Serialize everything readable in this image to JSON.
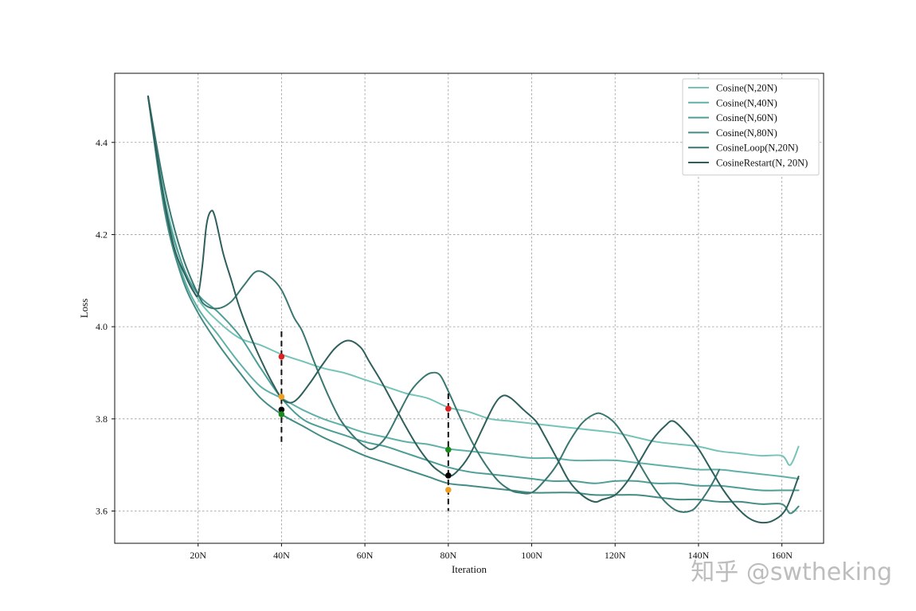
{
  "chart_data": {
    "type": "line",
    "xlabel": "Iteration",
    "ylabel": "Loss",
    "xlim": [
      0,
      170
    ],
    "ylim": [
      3.53,
      4.55
    ],
    "xticks": [
      20,
      40,
      60,
      80,
      100,
      120,
      140,
      160
    ],
    "xtick_labels": [
      "20N",
      "40N",
      "60N",
      "80N",
      "100N",
      "120N",
      "140N",
      "160N"
    ],
    "yticks": [
      3.6,
      3.8,
      4.0,
      4.2,
      4.4
    ],
    "ytick_labels": [
      "3.6",
      "3.8",
      "4.0",
      "4.2",
      "4.4"
    ],
    "grid": true,
    "legend_position": "top-right",
    "series": [
      {
        "name": "Cosine(N,20N)",
        "color": "#76c3b8",
        "points": [
          [
            8,
            4.5
          ],
          [
            12,
            4.28
          ],
          [
            16,
            4.14
          ],
          [
            20,
            4.06
          ],
          [
            25,
            4.01
          ],
          [
            30,
            3.975
          ],
          [
            35,
            3.96
          ],
          [
            40,
            3.94
          ],
          [
            45,
            3.925
          ],
          [
            50,
            3.91
          ],
          [
            55,
            3.9
          ],
          [
            60,
            3.885
          ],
          [
            65,
            3.87
          ],
          [
            70,
            3.855
          ],
          [
            75,
            3.845
          ],
          [
            80,
            3.825
          ],
          [
            85,
            3.815
          ],
          [
            90,
            3.8
          ],
          [
            95,
            3.795
          ],
          [
            100,
            3.79
          ],
          [
            105,
            3.785
          ],
          [
            110,
            3.78
          ],
          [
            115,
            3.775
          ],
          [
            120,
            3.77
          ],
          [
            125,
            3.76
          ],
          [
            130,
            3.75
          ],
          [
            135,
            3.745
          ],
          [
            140,
            3.74
          ],
          [
            145,
            3.73
          ],
          [
            150,
            3.725
          ],
          [
            155,
            3.72
          ],
          [
            160,
            3.72
          ],
          [
            162,
            3.7
          ],
          [
            164,
            3.74
          ]
        ]
      },
      {
        "name": "Cosine(N,40N)",
        "color": "#5fb1a8",
        "points": [
          [
            8,
            4.5
          ],
          [
            12,
            4.26
          ],
          [
            16,
            4.12
          ],
          [
            20,
            4.04
          ],
          [
            25,
            3.98
          ],
          [
            30,
            3.92
          ],
          [
            35,
            3.87
          ],
          [
            40,
            3.845
          ],
          [
            45,
            3.82
          ],
          [
            50,
            3.8
          ],
          [
            55,
            3.785
          ],
          [
            60,
            3.77
          ],
          [
            65,
            3.76
          ],
          [
            70,
            3.75
          ],
          [
            75,
            3.745
          ],
          [
            80,
            3.735
          ],
          [
            85,
            3.73
          ],
          [
            90,
            3.725
          ],
          [
            95,
            3.72
          ],
          [
            100,
            3.715
          ],
          [
            105,
            3.715
          ],
          [
            110,
            3.71
          ],
          [
            115,
            3.71
          ],
          [
            120,
            3.71
          ],
          [
            125,
            3.705
          ],
          [
            130,
            3.7
          ],
          [
            135,
            3.695
          ],
          [
            140,
            3.69
          ],
          [
            145,
            3.69
          ],
          [
            150,
            3.685
          ],
          [
            155,
            3.68
          ],
          [
            160,
            3.675
          ],
          [
            164,
            3.67
          ]
        ]
      },
      {
        "name": "Cosine(N,60N)",
        "color": "#4d9e96",
        "points": [
          [
            8,
            4.5
          ],
          [
            12,
            4.27
          ],
          [
            16,
            4.14
          ],
          [
            20,
            4.07
          ],
          [
            25,
            4.03
          ],
          [
            30,
            3.98
          ],
          [
            35,
            3.91
          ],
          [
            40,
            3.845
          ],
          [
            45,
            3.8
          ],
          [
            50,
            3.78
          ],
          [
            55,
            3.765
          ],
          [
            60,
            3.75
          ],
          [
            65,
            3.74
          ],
          [
            70,
            3.725
          ],
          [
            75,
            3.71
          ],
          [
            80,
            3.695
          ],
          [
            85,
            3.685
          ],
          [
            90,
            3.68
          ],
          [
            95,
            3.675
          ],
          [
            100,
            3.67
          ],
          [
            105,
            3.665
          ],
          [
            110,
            3.665
          ],
          [
            115,
            3.66
          ],
          [
            120,
            3.665
          ],
          [
            125,
            3.665
          ],
          [
            130,
            3.66
          ],
          [
            135,
            3.66
          ],
          [
            140,
            3.655
          ],
          [
            145,
            3.655
          ],
          [
            150,
            3.65
          ],
          [
            155,
            3.645
          ],
          [
            160,
            3.645
          ],
          [
            164,
            3.645
          ]
        ]
      },
      {
        "name": "Cosine(N,80N)",
        "color": "#438c85",
        "points": [
          [
            8,
            4.5
          ],
          [
            12,
            4.25
          ],
          [
            16,
            4.11
          ],
          [
            20,
            4.03
          ],
          [
            25,
            3.96
          ],
          [
            30,
            3.9
          ],
          [
            35,
            3.845
          ],
          [
            40,
            3.81
          ],
          [
            45,
            3.785
          ],
          [
            50,
            3.76
          ],
          [
            55,
            3.74
          ],
          [
            60,
            3.72
          ],
          [
            65,
            3.705
          ],
          [
            70,
            3.69
          ],
          [
            75,
            3.675
          ],
          [
            80,
            3.66
          ],
          [
            85,
            3.655
          ],
          [
            90,
            3.65
          ],
          [
            95,
            3.645
          ],
          [
            100,
            3.64
          ],
          [
            105,
            3.64
          ],
          [
            110,
            3.64
          ],
          [
            115,
            3.635
          ],
          [
            120,
            3.635
          ],
          [
            125,
            3.635
          ],
          [
            130,
            3.63
          ],
          [
            135,
            3.625
          ],
          [
            140,
            3.625
          ],
          [
            145,
            3.62
          ],
          [
            150,
            3.62
          ],
          [
            155,
            3.615
          ],
          [
            160,
            3.615
          ],
          [
            162,
            3.595
          ],
          [
            164,
            3.61
          ]
        ]
      },
      {
        "name": "CosineLoop(N,20N)",
        "color": "#3a7771",
        "points": [
          [
            8,
            4.5
          ],
          [
            12,
            4.3
          ],
          [
            16,
            4.16
          ],
          [
            20,
            4.07
          ],
          [
            22,
            4.045
          ],
          [
            25,
            4.04
          ],
          [
            28,
            4.055
          ],
          [
            31,
            4.09
          ],
          [
            34,
            4.12
          ],
          [
            37,
            4.11
          ],
          [
            40,
            4.08
          ],
          [
            43,
            4.02
          ],
          [
            45,
            3.99
          ],
          [
            48,
            3.92
          ],
          [
            51,
            3.855
          ],
          [
            54,
            3.8
          ],
          [
            57,
            3.765
          ],
          [
            60,
            3.74
          ],
          [
            62,
            3.735
          ],
          [
            65,
            3.76
          ],
          [
            68,
            3.81
          ],
          [
            71,
            3.86
          ],
          [
            74,
            3.89
          ],
          [
            76,
            3.9
          ],
          [
            78,
            3.895
          ],
          [
            80,
            3.86
          ],
          [
            83,
            3.8
          ],
          [
            86,
            3.745
          ],
          [
            89,
            3.7
          ],
          [
            92,
            3.665
          ],
          [
            95,
            3.645
          ],
          [
            97,
            3.64
          ],
          [
            100,
            3.64
          ],
          [
            103,
            3.665
          ],
          [
            106,
            3.7
          ],
          [
            109,
            3.75
          ],
          [
            112,
            3.79
          ],
          [
            115,
            3.81
          ],
          [
            117,
            3.81
          ],
          [
            120,
            3.79
          ],
          [
            123,
            3.75
          ],
          [
            126,
            3.7
          ],
          [
            129,
            3.655
          ],
          [
            132,
            3.62
          ],
          [
            135,
            3.6
          ],
          [
            138,
            3.6
          ],
          [
            140,
            3.615
          ],
          [
            143,
            3.655
          ],
          [
            145,
            3.69
          ]
        ]
      },
      {
        "name": "CosineRestart(N, 20N)",
        "color": "#2e5f5b",
        "points": [
          [
            8,
            4.5
          ],
          [
            11,
            4.32
          ],
          [
            14,
            4.18
          ],
          [
            17,
            4.11
          ],
          [
            19,
            4.075
          ],
          [
            20,
            4.07
          ],
          [
            21,
            4.13
          ],
          [
            22,
            4.22
          ],
          [
            23,
            4.25
          ],
          [
            24,
            4.24
          ],
          [
            26,
            4.16
          ],
          [
            28,
            4.1
          ],
          [
            30,
            4.04
          ],
          [
            33,
            3.97
          ],
          [
            36,
            3.91
          ],
          [
            38,
            3.875
          ],
          [
            40,
            3.845
          ],
          [
            42,
            3.835
          ],
          [
            44,
            3.845
          ],
          [
            47,
            3.88
          ],
          [
            50,
            3.92
          ],
          [
            53,
            3.955
          ],
          [
            56,
            3.97
          ],
          [
            59,
            3.955
          ],
          [
            61,
            3.925
          ],
          [
            64,
            3.88
          ],
          [
            67,
            3.83
          ],
          [
            70,
            3.78
          ],
          [
            73,
            3.735
          ],
          [
            76,
            3.7
          ],
          [
            78,
            3.685
          ],
          [
            80,
            3.675
          ],
          [
            82,
            3.685
          ],
          [
            85,
            3.72
          ],
          [
            88,
            3.775
          ],
          [
            91,
            3.83
          ],
          [
            93,
            3.85
          ],
          [
            95,
            3.845
          ],
          [
            98,
            3.82
          ],
          [
            101,
            3.795
          ],
          [
            103,
            3.765
          ],
          [
            106,
            3.715
          ],
          [
            109,
            3.665
          ],
          [
            112,
            3.635
          ],
          [
            115,
            3.62
          ],
          [
            117,
            3.625
          ],
          [
            120,
            3.635
          ],
          [
            123,
            3.665
          ],
          [
            126,
            3.71
          ],
          [
            129,
            3.755
          ],
          [
            132,
            3.785
          ],
          [
            134,
            3.795
          ],
          [
            137,
            3.77
          ],
          [
            140,
            3.735
          ],
          [
            143,
            3.69
          ],
          [
            146,
            3.645
          ],
          [
            149,
            3.61
          ],
          [
            152,
            3.585
          ],
          [
            155,
            3.575
          ],
          [
            158,
            3.58
          ],
          [
            161,
            3.605
          ],
          [
            164,
            3.675
          ]
        ]
      }
    ],
    "markers": [
      {
        "x": 40,
        "y": 3.935,
        "color": "#e02020"
      },
      {
        "x": 40,
        "y": 3.848,
        "color": "#f0a020"
      },
      {
        "x": 40,
        "y": 3.82,
        "color": "#000000"
      },
      {
        "x": 40,
        "y": 3.81,
        "color": "#1a8a1a"
      },
      {
        "x": 80,
        "y": 3.822,
        "color": "#e02020"
      },
      {
        "x": 80,
        "y": 3.733,
        "color": "#1a8a1a"
      },
      {
        "x": 80,
        "y": 3.677,
        "color": "#000000"
      },
      {
        "x": 80,
        "y": 3.646,
        "color": "#f0a020"
      }
    ],
    "vlines": [
      {
        "x": 40,
        "y_from": 3.75,
        "y_to": 3.99,
        "color": "#111111",
        "style": "dashed"
      },
      {
        "x": 80,
        "y_from": 3.6,
        "y_to": 3.855,
        "color": "#111111",
        "style": "dashed"
      }
    ]
  },
  "watermark": "知乎 @swtheking"
}
